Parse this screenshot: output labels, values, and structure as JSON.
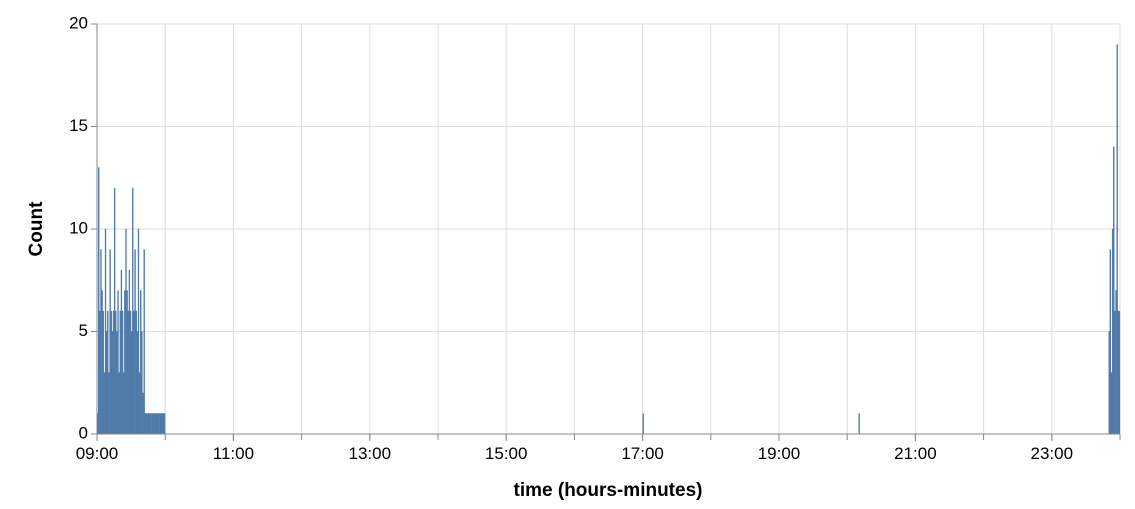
{
  "chart_data": {
    "type": "bar",
    "title": "",
    "xlabel": "time (hours-minutes)",
    "ylabel": "Count",
    "x_unit": "time of day (HH:MM), 1-minute bins",
    "xlim": [
      "09:00",
      "24:00"
    ],
    "ylim": [
      0,
      20
    ],
    "x_ticks": [
      "09:00",
      "11:00",
      "13:00",
      "15:00",
      "17:00",
      "19:00",
      "21:00",
      "23:00"
    ],
    "y_ticks": [
      "0",
      "5",
      "10",
      "15",
      "20"
    ],
    "grid": true,
    "bar_color": "#4c78a8",
    "x": [
      "09:00",
      "09:01",
      "09:02",
      "09:03",
      "09:04",
      "09:05",
      "09:06",
      "09:07",
      "09:08",
      "09:09",
      "09:10",
      "09:11",
      "09:12",
      "09:13",
      "09:14",
      "09:15",
      "09:16",
      "09:17",
      "09:18",
      "09:19",
      "09:20",
      "09:21",
      "09:22",
      "09:23",
      "09:24",
      "09:25",
      "09:26",
      "09:27",
      "09:28",
      "09:29",
      "09:30",
      "09:31",
      "09:32",
      "09:33",
      "09:34",
      "09:35",
      "09:36",
      "09:37",
      "09:38",
      "09:39",
      "09:40",
      "09:41",
      "09:42",
      "09:43",
      "09:44",
      "09:45",
      "09:46",
      "09:47",
      "09:48",
      "09:49",
      "09:50",
      "09:51",
      "09:52",
      "09:53",
      "09:54",
      "09:55",
      "09:56",
      "09:57",
      "09:58",
      "09:59",
      "17:00",
      "20:10",
      "23:50",
      "23:51",
      "23:52",
      "23:53",
      "23:54",
      "23:55",
      "23:56",
      "23:57",
      "23:58",
      "23:59"
    ],
    "values": [
      1,
      13,
      6,
      9,
      7,
      6,
      3,
      10,
      5,
      6,
      3,
      9,
      6,
      5,
      6,
      12,
      6,
      5,
      7,
      3,
      6,
      8,
      6,
      3,
      7,
      10,
      7,
      6,
      8,
      6,
      5,
      12,
      6,
      9,
      6,
      5,
      10,
      3,
      7,
      5,
      2,
      9,
      1,
      1,
      1,
      1,
      1,
      1,
      1,
      1,
      1,
      1,
      1,
      1,
      1,
      1,
      1,
      1,
      1,
      1,
      1,
      1,
      5,
      9,
      3,
      10,
      14,
      6,
      7,
      19,
      6,
      6
    ]
  }
}
